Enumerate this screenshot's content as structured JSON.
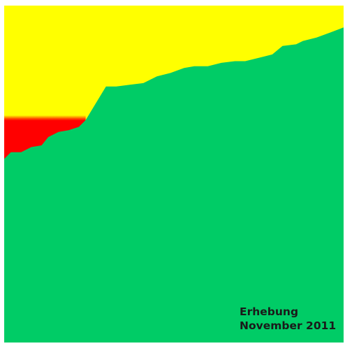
{
  "caption": {
    "line1": "Erhebung",
    "line2": "November 2011"
  },
  "chart_data": {
    "type": "area",
    "xlim": [
      0,
      100
    ],
    "ylim": [
      0,
      100
    ],
    "series": [
      {
        "color": "#00CC66",
        "x": [
          0,
          2,
          5,
          8,
          11,
          13,
          16,
          19,
          22,
          24,
          27,
          30,
          33,
          37,
          41,
          45,
          49,
          53,
          56,
          60,
          64,
          68,
          71,
          75,
          79,
          82,
          86,
          88,
          92,
          96,
          100
        ],
        "y": [
          54.5,
          56.5,
          56.5,
          58,
          58.5,
          61,
          62.5,
          63,
          64,
          66,
          71,
          76,
          76,
          76.5,
          77,
          79,
          80,
          81.5,
          82,
          82,
          83,
          83.5,
          83.5,
          84.5,
          85.5,
          88,
          88.5,
          89.5,
          90.5,
          92,
          93.5
        ]
      },
      {
        "color": "#FF0000",
        "x": [
          0,
          24
        ],
        "y": [
          66,
          66
        ]
      },
      {
        "color": "#FFFF00",
        "x": [
          0,
          100
        ],
        "y": [
          100,
          100
        ]
      }
    ]
  }
}
